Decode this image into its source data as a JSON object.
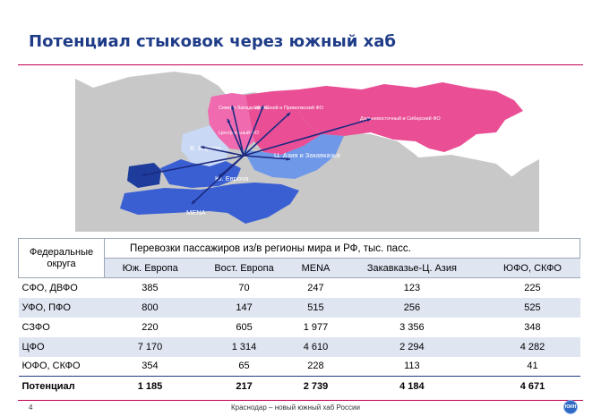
{
  "slide": {
    "title": "Потенциал стыковок через южный хаб",
    "page_number": "4",
    "footer_text": "Краснодар – новый южный хаб России",
    "logo_text": "ЮИН"
  },
  "map": {
    "labels": {
      "nw_fo": "Северо-Западный ФО",
      "ural_volga": "Уральский и Приволжский ФО",
      "far_east_siberia": "Дальневосточный и Сибирский ФО",
      "central_fo": "Центральный ФО",
      "e_europe": "В. Европа",
      "yufo": "ЮФО",
      "c_asia": "Ц. Азия и Закавказье",
      "s_europe": "Ю. Европа",
      "mena": "MENA"
    },
    "colors": {
      "russia": "#ea4f96",
      "nw_central": "#f06ab0",
      "e_europe": "#c9d8f4",
      "c_asia": "#6f98e8",
      "s_europe": "#3a5fd3",
      "mena": "#3a5fd3",
      "iberia": "#1d3c9b",
      "other_land": "#c8c8c8",
      "arrows": "#1c2a80"
    }
  },
  "table": {
    "corner_label": "Федеральные округа",
    "group_header": "Перевозки пассажиров из/в регионы мира и РФ, тыс. пасс.",
    "columns": [
      "Юж. Европа",
      "Вост. Европа",
      "MENA",
      "Закавказье-Ц. Азия",
      "ЮФО, СКФО"
    ],
    "rows": [
      {
        "label": "СФО, ДВФО",
        "values": [
          "385",
          "70",
          "247",
          "123",
          "225"
        ]
      },
      {
        "label": "УФО, ПФО",
        "values": [
          "800",
          "147",
          "515",
          "256",
          "525"
        ]
      },
      {
        "label": "СЗФО",
        "values": [
          "220",
          "605",
          "1 977",
          "3 356",
          "348"
        ]
      },
      {
        "label": "ЦФО",
        "values": [
          "7 170",
          "1 314",
          "4 610",
          "2 294",
          "4 282"
        ]
      },
      {
        "label": "ЮФО, СКФО",
        "values": [
          "354",
          "65",
          "228",
          "113",
          "41"
        ]
      }
    ],
    "total": {
      "label": "Потенциал",
      "values": [
        "1 185",
        "217",
        "2 739",
        "4 184",
        "4 671"
      ]
    }
  }
}
